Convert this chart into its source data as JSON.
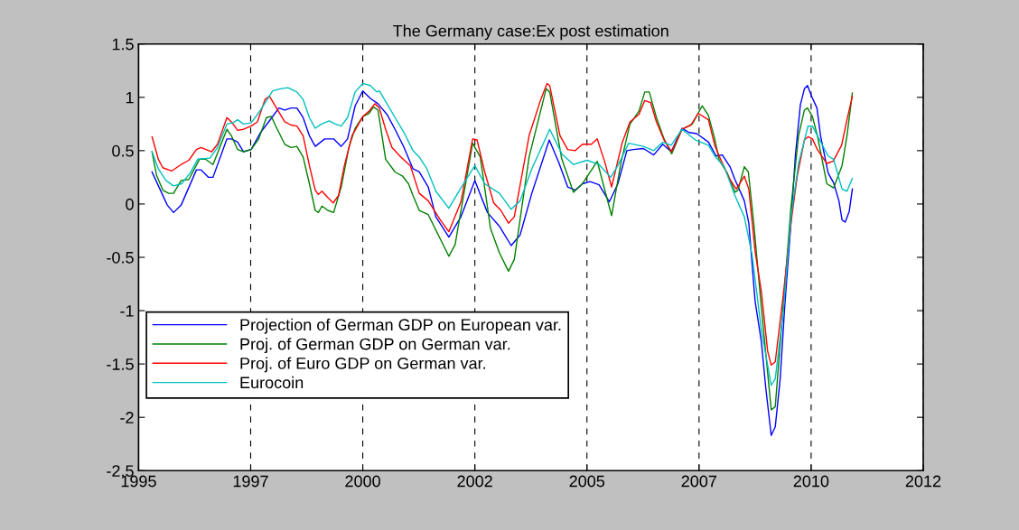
{
  "chart_data": {
    "type": "line",
    "title": "The Germany case:Ex post estimation",
    "xlim": [
      1995,
      2012.5
    ],
    "xticks": [
      1995,
      {
        "value": 1997.5,
        "label": "1997"
      },
      2000,
      {
        "value": 2002.5,
        "label": "2002"
      },
      2005,
      {
        "value": 2007.5,
        "label": "2007"
      },
      2010,
      {
        "value": 2012.5,
        "label": "2012"
      }
    ],
    "ylim": [
      -2.5,
      1.5
    ],
    "yticks": [
      -2.5,
      -2,
      -1.5,
      -1,
      -0.5,
      0,
      0.5,
      1,
      1.5
    ],
    "grid": "x",
    "legend": "bottom left",
    "line_style": "solid",
    "marker": "none",
    "series": [
      {
        "name": "Projection of German GDP on European var.",
        "color": "#0000ff",
        "x": [
          1995.3,
          1995.64,
          1995.78,
          1995.95,
          1996.29,
          1996.39,
          1996.56,
          1996.66,
          1996.97,
          1997.07,
          1997.21,
          1997.34,
          1997.51,
          1997.72,
          1997.92,
          1998.13,
          1998.26,
          1998.4,
          1998.53,
          1998.67,
          1998.81,
          1998.94,
          1999.15,
          1999.35,
          1999.52,
          1999.66,
          1999.83,
          2000.0,
          2000.17,
          2000.34,
          2000.54,
          2000.72,
          2000.92,
          2001.12,
          2001.26,
          2001.46,
          2001.63,
          2001.92,
          2002.19,
          2002.5,
          2002.78,
          2003.05,
          2003.31,
          2003.51,
          2003.77,
          2004.16,
          2004.37,
          2004.57,
          2004.74,
          2004.9,
          2005.07,
          2005.27,
          2005.5,
          2005.69,
          2005.89,
          2006.03,
          2006.26,
          2006.49,
          2006.69,
          2006.88,
          2007.12,
          2007.28,
          2007.45,
          2007.71,
          2007.88,
          2008.02,
          2008.19,
          2008.3,
          2008.51,
          2008.61,
          2008.75,
          2008.89,
          2008.99,
          2009.11,
          2009.2,
          2009.31,
          2009.41,
          2009.55,
          2009.65,
          2009.76,
          2009.85,
          2009.92,
          2010.0,
          2010.13,
          2010.21,
          2010.38,
          2010.5,
          2010.62,
          2010.69,
          2010.76,
          2010.85,
          2010.92
        ],
        "values": [
          0.3,
          -0.01,
          -0.08,
          -0.01,
          0.32,
          0.32,
          0.25,
          0.25,
          0.61,
          0.61,
          0.58,
          0.49,
          0.51,
          0.67,
          0.78,
          0.9,
          0.88,
          0.9,
          0.9,
          0.81,
          0.64,
          0.54,
          0.61,
          0.61,
          0.54,
          0.61,
          0.92,
          1.06,
          0.99,
          0.94,
          0.84,
          0.7,
          0.53,
          0.33,
          0.3,
          0.16,
          -0.12,
          -0.31,
          -0.12,
          0.22,
          -0.08,
          -0.21,
          -0.39,
          -0.29,
          0.1,
          0.6,
          0.39,
          0.16,
          0.13,
          0.19,
          0.21,
          0.18,
          0.02,
          0.19,
          0.5,
          0.51,
          0.52,
          0.46,
          0.56,
          0.49,
          0.71,
          0.67,
          0.66,
          0.58,
          0.45,
          0.46,
          0.35,
          0.23,
          0.03,
          -0.18,
          -0.91,
          -1.29,
          -1.73,
          -2.17,
          -2.09,
          -1.64,
          -0.97,
          -0.18,
          0.46,
          0.93,
          1.08,
          1.11,
          1.02,
          0.9,
          0.64,
          0.29,
          0.2,
          0.03,
          -0.15,
          -0.17,
          -0.07,
          0.14
        ]
      },
      {
        "name": "Proj. of German GDP on German var.",
        "color": "#008000",
        "x": [
          1995.3,
          1995.4,
          1995.54,
          1995.67,
          1995.78,
          1995.95,
          1996.12,
          1996.36,
          1996.49,
          1996.66,
          1996.97,
          1997.07,
          1997.21,
          1997.34,
          1997.51,
          1997.68,
          1997.85,
          1997.96,
          1998.06,
          1998.26,
          1998.4,
          1998.53,
          1998.67,
          1998.81,
          1998.94,
          1999.01,
          1999.09,
          1999.22,
          1999.35,
          1999.52,
          1999.69,
          1999.83,
          2000.0,
          2000.14,
          2000.24,
          2000.34,
          2000.51,
          2000.72,
          2000.89,
          2001.02,
          2001.12,
          2001.26,
          2001.46,
          2001.92,
          2002.06,
          2002.45,
          2002.62,
          2002.85,
          2003.05,
          2003.25,
          2003.38,
          2003.71,
          2004.09,
          2004.17,
          2004.44,
          2004.7,
          2004.9,
          2005.23,
          2005.43,
          2005.55,
          2005.76,
          2005.96,
          2006.16,
          2006.29,
          2006.39,
          2006.55,
          2006.72,
          2006.89,
          2007.12,
          2007.35,
          2007.57,
          2007.71,
          2007.85,
          2007.95,
          2008.13,
          2008.3,
          2008.37,
          2008.51,
          2008.6,
          2008.72,
          2008.89,
          2009.11,
          2009.2,
          2009.38,
          2009.55,
          2009.72,
          2009.85,
          2009.92,
          2010.03,
          2010.14,
          2010.35,
          2010.5,
          2010.69,
          2010.8,
          2010.92
        ],
        "values": [
          0.49,
          0.27,
          0.13,
          0.1,
          0.1,
          0.22,
          0.23,
          0.42,
          0.42,
          0.37,
          0.7,
          0.64,
          0.51,
          0.49,
          0.51,
          0.61,
          0.81,
          0.82,
          0.73,
          0.56,
          0.53,
          0.54,
          0.44,
          0.19,
          -0.06,
          -0.08,
          -0.02,
          -0.06,
          -0.08,
          0.16,
          0.53,
          0.71,
          0.82,
          0.85,
          0.91,
          0.88,
          0.42,
          0.3,
          0.26,
          0.19,
          0.08,
          -0.06,
          -0.1,
          -0.49,
          -0.38,
          0.57,
          0.44,
          -0.23,
          -0.46,
          -0.63,
          -0.52,
          0.44,
          1.08,
          1.05,
          0.42,
          0.11,
          0.19,
          0.4,
          0.08,
          -0.11,
          0.39,
          0.75,
          0.87,
          1.05,
          1.05,
          0.81,
          0.61,
          0.47,
          0.7,
          0.75,
          0.92,
          0.83,
          0.61,
          0.41,
          0.29,
          0.11,
          0.13,
          0.35,
          0.3,
          -0.18,
          -0.97,
          -1.93,
          -1.9,
          -0.94,
          -0.03,
          0.64,
          0.88,
          0.9,
          0.82,
          0.64,
          0.19,
          0.15,
          0.36,
          0.64,
          1.04
        ]
      },
      {
        "name": "Proj. of Euro GDP on German var.",
        "color": "#ff0000",
        "x": [
          1995.3,
          1995.44,
          1995.54,
          1995.74,
          1995.95,
          1996.12,
          1996.29,
          1996.39,
          1996.63,
          1996.76,
          1996.97,
          1997.07,
          1997.21,
          1997.34,
          1997.51,
          1997.65,
          1997.82,
          1997.92,
          1998.06,
          1998.26,
          1998.4,
          1998.53,
          1998.67,
          1998.81,
          1998.94,
          1999.01,
          1999.09,
          1999.22,
          1999.34,
          1999.46,
          1999.59,
          1999.76,
          2000.0,
          2000.14,
          2000.27,
          2000.37,
          2000.51,
          2000.65,
          2000.85,
          2001.06,
          2001.26,
          2001.46,
          2001.73,
          2001.92,
          2002.19,
          2002.45,
          2002.55,
          2002.72,
          2002.92,
          2003.08,
          2003.25,
          2003.38,
          2003.71,
          2003.97,
          2004.11,
          2004.17,
          2004.4,
          2004.57,
          2004.74,
          2004.9,
          2005.1,
          2005.23,
          2005.4,
          2005.55,
          2005.79,
          2005.96,
          2006.16,
          2006.29,
          2006.42,
          2006.55,
          2006.72,
          2006.89,
          2007.12,
          2007.32,
          2007.48,
          2007.71,
          2007.85,
          2007.99,
          2008.19,
          2008.33,
          2008.51,
          2008.61,
          2008.75,
          2008.89,
          2009.03,
          2009.11,
          2009.2,
          2009.38,
          2009.55,
          2009.69,
          2009.85,
          2009.93,
          2010.03,
          2010.14,
          2010.35,
          2010.49,
          2010.68,
          2010.8,
          2010.92
        ],
        "values": [
          0.63,
          0.42,
          0.34,
          0.31,
          0.37,
          0.41,
          0.51,
          0.53,
          0.49,
          0.56,
          0.81,
          0.77,
          0.69,
          0.7,
          0.73,
          0.77,
          0.98,
          1.01,
          0.91,
          0.77,
          0.74,
          0.73,
          0.64,
          0.36,
          0.13,
          0.09,
          0.12,
          0.06,
          0.01,
          0.08,
          0.36,
          0.64,
          0.82,
          0.87,
          0.94,
          0.9,
          0.7,
          0.53,
          0.44,
          0.36,
          0.1,
          0.03,
          -0.15,
          -0.26,
          0.02,
          0.61,
          0.6,
          0.3,
          0.01,
          -0.06,
          -0.18,
          -0.12,
          0.64,
          0.98,
          1.13,
          1.11,
          0.64,
          0.51,
          0.5,
          0.56,
          0.56,
          0.61,
          0.39,
          0.16,
          0.58,
          0.77,
          0.84,
          0.97,
          0.95,
          0.77,
          0.6,
          0.49,
          0.7,
          0.74,
          0.85,
          0.79,
          0.55,
          0.41,
          0.23,
          0.14,
          0.26,
          0.14,
          -0.44,
          -0.82,
          -1.38,
          -1.51,
          -1.48,
          -0.85,
          -0.18,
          0.26,
          0.6,
          0.63,
          0.61,
          0.51,
          0.38,
          0.4,
          0.55,
          0.79,
          1.01
        ]
      },
      {
        "name": "Eurocoin",
        "color": "#00bfbf",
        "x": [
          1995.3,
          1995.44,
          1995.61,
          1995.78,
          1995.96,
          1996.15,
          1996.32,
          1996.59,
          1996.76,
          1996.97,
          1997.1,
          1997.21,
          1997.34,
          1997.51,
          1997.72,
          1997.99,
          1998.16,
          1998.33,
          1998.53,
          1998.67,
          1998.81,
          1998.94,
          1999.08,
          1999.25,
          1999.39,
          1999.52,
          1999.66,
          1999.83,
          2000.0,
          2000.17,
          2000.31,
          2000.37,
          2000.54,
          2000.72,
          2000.92,
          2001.12,
          2001.26,
          2001.43,
          2001.63,
          2001.92,
          2002.19,
          2002.5,
          2002.72,
          2003.05,
          2003.31,
          2003.51,
          2003.77,
          2004.17,
          2004.44,
          2004.7,
          2005.0,
          2005.27,
          2005.53,
          2005.69,
          2005.93,
          2006.26,
          2006.49,
          2006.69,
          2006.88,
          2007.12,
          2007.42,
          2007.71,
          2007.85,
          2008.06,
          2008.3,
          2008.51,
          2008.68,
          2008.89,
          2009.11,
          2009.2,
          2009.38,
          2009.55,
          2009.72,
          2009.93,
          2010.03,
          2010.14,
          2010.38,
          2010.5,
          2010.69,
          2010.8,
          2010.92
        ],
        "values": [
          0.49,
          0.33,
          0.22,
          0.17,
          0.19,
          0.29,
          0.42,
          0.43,
          0.53,
          0.75,
          0.76,
          0.79,
          0.75,
          0.76,
          0.88,
          1.06,
          1.08,
          1.09,
          1.05,
          0.98,
          0.81,
          0.71,
          0.75,
          0.78,
          0.75,
          0.73,
          0.81,
          1.05,
          1.13,
          1.11,
          1.05,
          1.06,
          0.94,
          0.81,
          0.67,
          0.5,
          0.44,
          0.33,
          0.12,
          -0.04,
          0.15,
          0.36,
          0.19,
          0.1,
          -0.05,
          0.03,
          0.33,
          0.7,
          0.47,
          0.37,
          0.41,
          0.37,
          0.25,
          0.36,
          0.57,
          0.54,
          0.5,
          0.58,
          0.55,
          0.7,
          0.6,
          0.55,
          0.45,
          0.35,
          0.08,
          -0.12,
          -0.47,
          -1.18,
          -1.7,
          -1.64,
          -1.0,
          -0.12,
          0.38,
          0.73,
          0.73,
          0.64,
          0.45,
          0.42,
          0.14,
          0.12,
          0.24
        ]
      }
    ]
  }
}
